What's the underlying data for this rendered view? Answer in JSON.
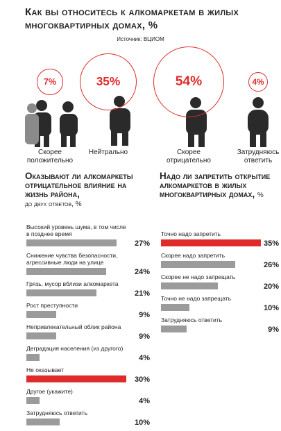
{
  "chart_data": [
    {
      "type": "bubble",
      "title": "Как вы относитесь к алкомаркетам в жилых многоквартирных домах, %",
      "subtitle": "Источник: ВЦИОМ",
      "categories": [
        "Скорее положительно",
        "Нейтрально",
        "Скорее отрицательно",
        "Затрудняюсь ответить"
      ],
      "values": [
        7,
        35,
        54,
        4
      ],
      "value_labels": [
        "7%",
        "35%",
        "54%",
        "4%"
      ],
      "color": "#e02b2b"
    },
    {
      "type": "hbar",
      "title": "Оказывают ли алкомаркеты отрицательное влияние на жизнь района,",
      "subtitle": "до двух ответов, %",
      "categories": [
        "Высокий уровень шума, в том числе в позднее время",
        "Снижение чувства безопасности, агрессивные люди на улице",
        "Грязь, мусор вблизи алкомаркета",
        "Рост преступности",
        "Непривлекательный облик района",
        "Деградация населения (из другого)",
        "Не оказывает",
        "Другое (укажите)",
        "Затрудняюсь ответить"
      ],
      "values": [
        27,
        24,
        21,
        9,
        9,
        4,
        30,
        4,
        10
      ],
      "value_labels": [
        "27%",
        "24%",
        "21%",
        "9%",
        "9%",
        "4%",
        "30%",
        "4%",
        "10%"
      ],
      "colors": [
        "#9b9b9b",
        "#9b9b9b",
        "#9b9b9b",
        "#9b9b9b",
        "#9b9b9b",
        "#9b9b9b",
        "#e02b2b",
        "#9b9b9b",
        "#9b9b9b"
      ]
    },
    {
      "type": "hbar",
      "title": "Надо ли запретить открытие алкомаркетов в жилых многоквартирных домах,",
      "subtitle": "%",
      "categories": [
        "Точно надо запретить",
        "Скорее надо запретить",
        "Скорее не надо запрещать",
        "Точно не надо запрещать",
        "Затрудняюсь ответить"
      ],
      "values": [
        35,
        26,
        20,
        10,
        9
      ],
      "value_labels": [
        "35%",
        "26%",
        "20%",
        "10%",
        "9%"
      ],
      "colors": [
        "#e02b2b",
        "#9b9b9b",
        "#9b9b9b",
        "#9b9b9b",
        "#9b9b9b"
      ]
    }
  ]
}
